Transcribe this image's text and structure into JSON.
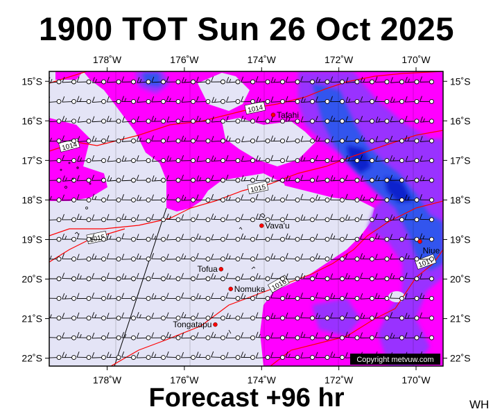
{
  "title": "1900 TOT Sun 26 Oct 2025",
  "subtitle": "Forecast +96 hr",
  "corner_label": "WH",
  "copyright": "Copyright metvuw.com",
  "axes": {
    "lon_ticks": [
      {
        "lon": -178,
        "label": "178˚W"
      },
      {
        "lon": -176,
        "label": "176˚W"
      },
      {
        "lon": -174,
        "label": "174˚W"
      },
      {
        "lon": -172,
        "label": "172˚W"
      },
      {
        "lon": -170,
        "label": "170˚W"
      }
    ],
    "lat_ticks": [
      {
        "lat": -15,
        "label": "15˚S"
      },
      {
        "lat": -16,
        "label": "16˚S"
      },
      {
        "lat": -17,
        "label": "17˚S"
      },
      {
        "lat": -18,
        "label": "18˚S"
      },
      {
        "lat": -19,
        "label": "19˚S"
      },
      {
        "lat": -20,
        "label": "20˚S"
      },
      {
        "lat": -21,
        "label": "21˚S"
      },
      {
        "lat": -22,
        "label": "22˚S"
      }
    ],
    "lon_range": [
      -179.5,
      -169.3
    ],
    "lat_range": [
      -22.2,
      -14.75
    ]
  },
  "places": [
    {
      "name": "Tafahi",
      "lon": -173.7,
      "lat": -15.85
    },
    {
      "name": "Vava'u",
      "lon": -174.0,
      "lat": -18.65
    },
    {
      "name": "Niue",
      "lon": -169.9,
      "lat": -19.05
    },
    {
      "name": "Tofua",
      "lon": -175.05,
      "lat": -19.75
    },
    {
      "name": "Nomuka",
      "lon": -174.8,
      "lat": -20.25
    },
    {
      "name": "Tongatapu",
      "lon": -175.2,
      "lat": -21.15
    }
  ],
  "isobar_labels": [
    "1014",
    "1014",
    "1015",
    "1015",
    "1016",
    "1017"
  ],
  "colors": {
    "background": "#e4e4f6",
    "rain_light": "#ff00ff",
    "rain_moderate": "#9933ff",
    "rain_heavy": "#3355ee",
    "rain_very_heavy": "#1122cc",
    "isobar": "#ff0000",
    "place_marker": "#ff0000"
  }
}
